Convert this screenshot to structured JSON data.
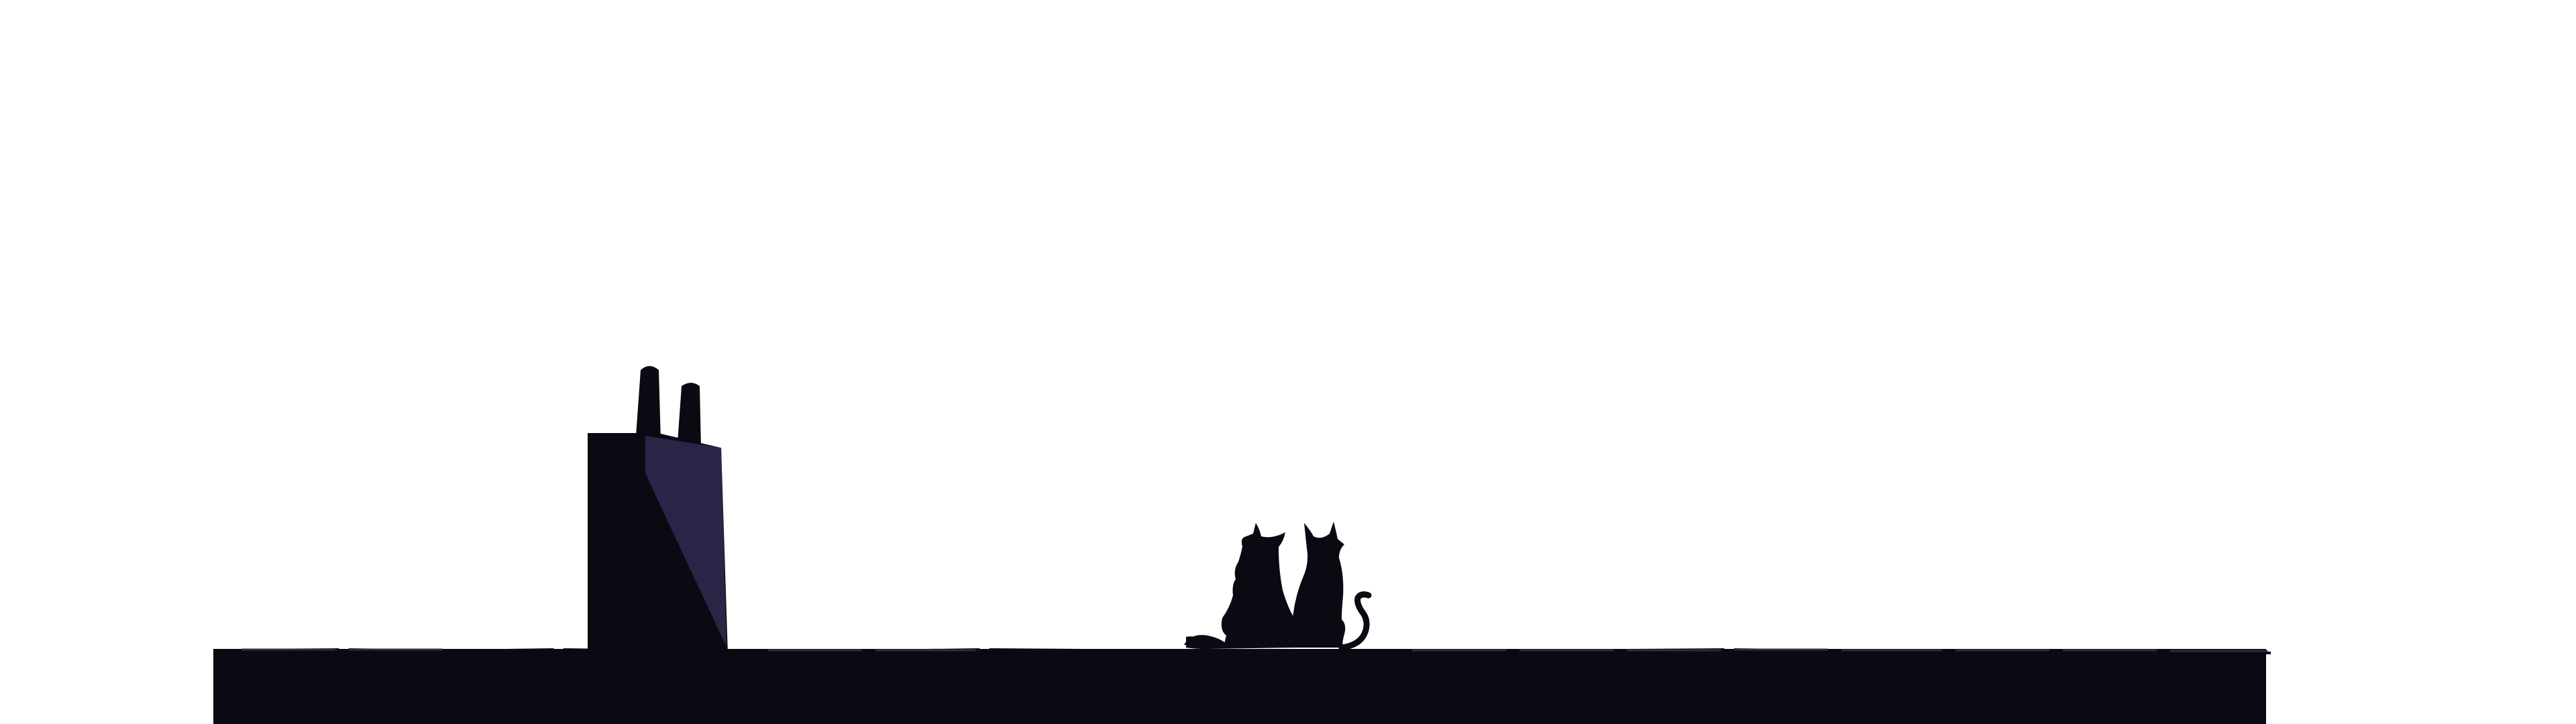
{
  "scene": {
    "background_color": "#ffffff",
    "silhouette_color": "#0a0b12",
    "chimney_light_color": "#2a2447",
    "roof_highlight_color": "#2d2a4a",
    "subjects": [
      "rooftop",
      "chimney-stack",
      "cat",
      "cat"
    ]
  }
}
